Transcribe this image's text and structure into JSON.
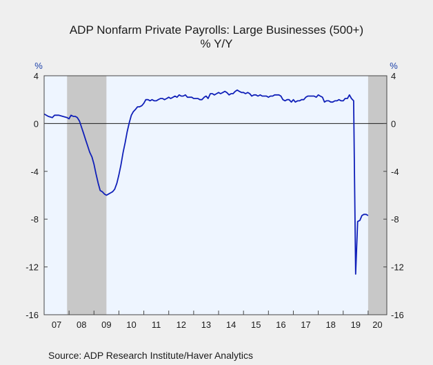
{
  "chart_data": {
    "type": "line",
    "title": "ADP Nonfarm Private Payrolls: Large Businesses (500+)",
    "subtitle": "% Y/Y",
    "ylabel_left": "%",
    "ylabel_right": "%",
    "ylim": [
      -16,
      4
    ],
    "yticks": [
      4,
      0,
      -4,
      -8,
      -12,
      -16
    ],
    "xlim": [
      2007.0,
      2020.75
    ],
    "xticks": [
      "07",
      "08",
      "09",
      "10",
      "11",
      "12",
      "13",
      "14",
      "15",
      "16",
      "17",
      "18",
      "19",
      "20"
    ],
    "grid": false,
    "zero_line": true,
    "recessions": [
      [
        2007.92,
        2009.5
      ],
      [
        2020.0,
        2020.75
      ]
    ],
    "series": [
      {
        "color": "#0f1fb8",
        "points": [
          [
            2007.0,
            0.8
          ],
          [
            2007.17,
            0.6
          ],
          [
            2007.33,
            0.5
          ],
          [
            2007.42,
            0.7
          ],
          [
            2007.58,
            0.7
          ],
          [
            2007.75,
            0.6
          ],
          [
            2007.92,
            0.5
          ],
          [
            2008.0,
            0.4
          ],
          [
            2008.08,
            0.7
          ],
          [
            2008.17,
            0.6
          ],
          [
            2008.25,
            0.6
          ],
          [
            2008.33,
            0.5
          ],
          [
            2008.42,
            0.2
          ],
          [
            2008.5,
            -0.3
          ],
          [
            2008.58,
            -0.8
          ],
          [
            2008.67,
            -1.4
          ],
          [
            2008.75,
            -1.9
          ],
          [
            2008.83,
            -2.4
          ],
          [
            2008.92,
            -2.8
          ],
          [
            2009.0,
            -3.4
          ],
          [
            2009.08,
            -4.2
          ],
          [
            2009.17,
            -5.0
          ],
          [
            2009.25,
            -5.6
          ],
          [
            2009.33,
            -5.7
          ],
          [
            2009.42,
            -5.9
          ],
          [
            2009.5,
            -6.0
          ],
          [
            2009.58,
            -5.9
          ],
          [
            2009.67,
            -5.8
          ],
          [
            2009.75,
            -5.7
          ],
          [
            2009.83,
            -5.5
          ],
          [
            2009.92,
            -5.0
          ],
          [
            2010.0,
            -4.3
          ],
          [
            2010.08,
            -3.5
          ],
          [
            2010.17,
            -2.4
          ],
          [
            2010.25,
            -1.6
          ],
          [
            2010.33,
            -0.7
          ],
          [
            2010.42,
            0.1
          ],
          [
            2010.5,
            0.7
          ],
          [
            2010.58,
            1.0
          ],
          [
            2010.67,
            1.2
          ],
          [
            2010.75,
            1.4
          ],
          [
            2010.83,
            1.4
          ],
          [
            2010.92,
            1.5
          ],
          [
            2011.0,
            1.7
          ],
          [
            2011.08,
            2.0
          ],
          [
            2011.17,
            2.0
          ],
          [
            2011.25,
            1.9
          ],
          [
            2011.33,
            2.0
          ],
          [
            2011.42,
            1.9
          ],
          [
            2011.5,
            1.9
          ],
          [
            2011.58,
            2.0
          ],
          [
            2011.67,
            2.1
          ],
          [
            2011.75,
            2.1
          ],
          [
            2011.83,
            2.0
          ],
          [
            2011.92,
            2.1
          ],
          [
            2012.0,
            2.2
          ],
          [
            2012.08,
            2.1
          ],
          [
            2012.17,
            2.2
          ],
          [
            2012.25,
            2.3
          ],
          [
            2012.33,
            2.2
          ],
          [
            2012.42,
            2.4
          ],
          [
            2012.5,
            2.3
          ],
          [
            2012.58,
            2.3
          ],
          [
            2012.67,
            2.4
          ],
          [
            2012.75,
            2.2
          ],
          [
            2012.83,
            2.2
          ],
          [
            2012.92,
            2.2
          ],
          [
            2013.0,
            2.1
          ],
          [
            2013.08,
            2.1
          ],
          [
            2013.17,
            2.1
          ],
          [
            2013.25,
            2.0
          ],
          [
            2013.33,
            2.0
          ],
          [
            2013.42,
            2.2
          ],
          [
            2013.5,
            2.3
          ],
          [
            2013.58,
            2.1
          ],
          [
            2013.67,
            2.5
          ],
          [
            2013.75,
            2.5
          ],
          [
            2013.83,
            2.4
          ],
          [
            2013.92,
            2.5
          ],
          [
            2014.0,
            2.6
          ],
          [
            2014.08,
            2.5
          ],
          [
            2014.17,
            2.6
          ],
          [
            2014.25,
            2.7
          ],
          [
            2014.33,
            2.6
          ],
          [
            2014.42,
            2.4
          ],
          [
            2014.5,
            2.5
          ],
          [
            2014.58,
            2.5
          ],
          [
            2014.67,
            2.7
          ],
          [
            2014.75,
            2.8
          ],
          [
            2014.83,
            2.7
          ],
          [
            2014.92,
            2.6
          ],
          [
            2015.0,
            2.6
          ],
          [
            2015.08,
            2.5
          ],
          [
            2015.17,
            2.6
          ],
          [
            2015.25,
            2.5
          ],
          [
            2015.33,
            2.3
          ],
          [
            2015.42,
            2.4
          ],
          [
            2015.5,
            2.4
          ],
          [
            2015.58,
            2.3
          ],
          [
            2015.67,
            2.4
          ],
          [
            2015.75,
            2.3
          ],
          [
            2015.83,
            2.3
          ],
          [
            2015.92,
            2.3
          ],
          [
            2016.0,
            2.2
          ],
          [
            2016.08,
            2.3
          ],
          [
            2016.17,
            2.3
          ],
          [
            2016.25,
            2.4
          ],
          [
            2016.33,
            2.4
          ],
          [
            2016.42,
            2.4
          ],
          [
            2016.5,
            2.3
          ],
          [
            2016.58,
            2.0
          ],
          [
            2016.67,
            1.9
          ],
          [
            2016.75,
            2.0
          ],
          [
            2016.83,
            2.0
          ],
          [
            2016.92,
            1.8
          ],
          [
            2017.0,
            2.0
          ],
          [
            2017.08,
            1.8
          ],
          [
            2017.17,
            1.9
          ],
          [
            2017.25,
            1.9
          ],
          [
            2017.33,
            2.0
          ],
          [
            2017.42,
            2.0
          ],
          [
            2017.5,
            2.2
          ],
          [
            2017.58,
            2.3
          ],
          [
            2017.67,
            2.3
          ],
          [
            2017.75,
            2.3
          ],
          [
            2017.83,
            2.3
          ],
          [
            2017.92,
            2.2
          ],
          [
            2018.0,
            2.4
          ],
          [
            2018.08,
            2.3
          ],
          [
            2018.17,
            2.2
          ],
          [
            2018.25,
            1.8
          ],
          [
            2018.33,
            1.9
          ],
          [
            2018.42,
            1.9
          ],
          [
            2018.5,
            1.8
          ],
          [
            2018.58,
            1.8
          ],
          [
            2018.67,
            1.9
          ],
          [
            2018.75,
            1.9
          ],
          [
            2018.83,
            2.0
          ],
          [
            2018.92,
            1.9
          ],
          [
            2019.0,
            1.9
          ],
          [
            2019.08,
            2.1
          ],
          [
            2019.17,
            2.1
          ],
          [
            2019.25,
            2.4
          ],
          [
            2019.33,
            2.1
          ],
          [
            2019.42,
            1.9
          ],
          [
            2019.5,
            -12.6
          ],
          [
            2019.58,
            -8.2
          ],
          [
            2019.67,
            -8.1
          ],
          [
            2019.75,
            -7.7
          ],
          [
            2019.83,
            -7.6
          ],
          [
            2019.92,
            -7.6
          ],
          [
            2020.0,
            -7.7
          ]
        ]
      }
    ]
  },
  "page": {
    "title_line1": "ADP Nonfarm Private Payrolls: Large Businesses (500+)",
    "title_line2": "% Y/Y",
    "source": "Source:  ADP Research Institute/Haver Analytics"
  }
}
